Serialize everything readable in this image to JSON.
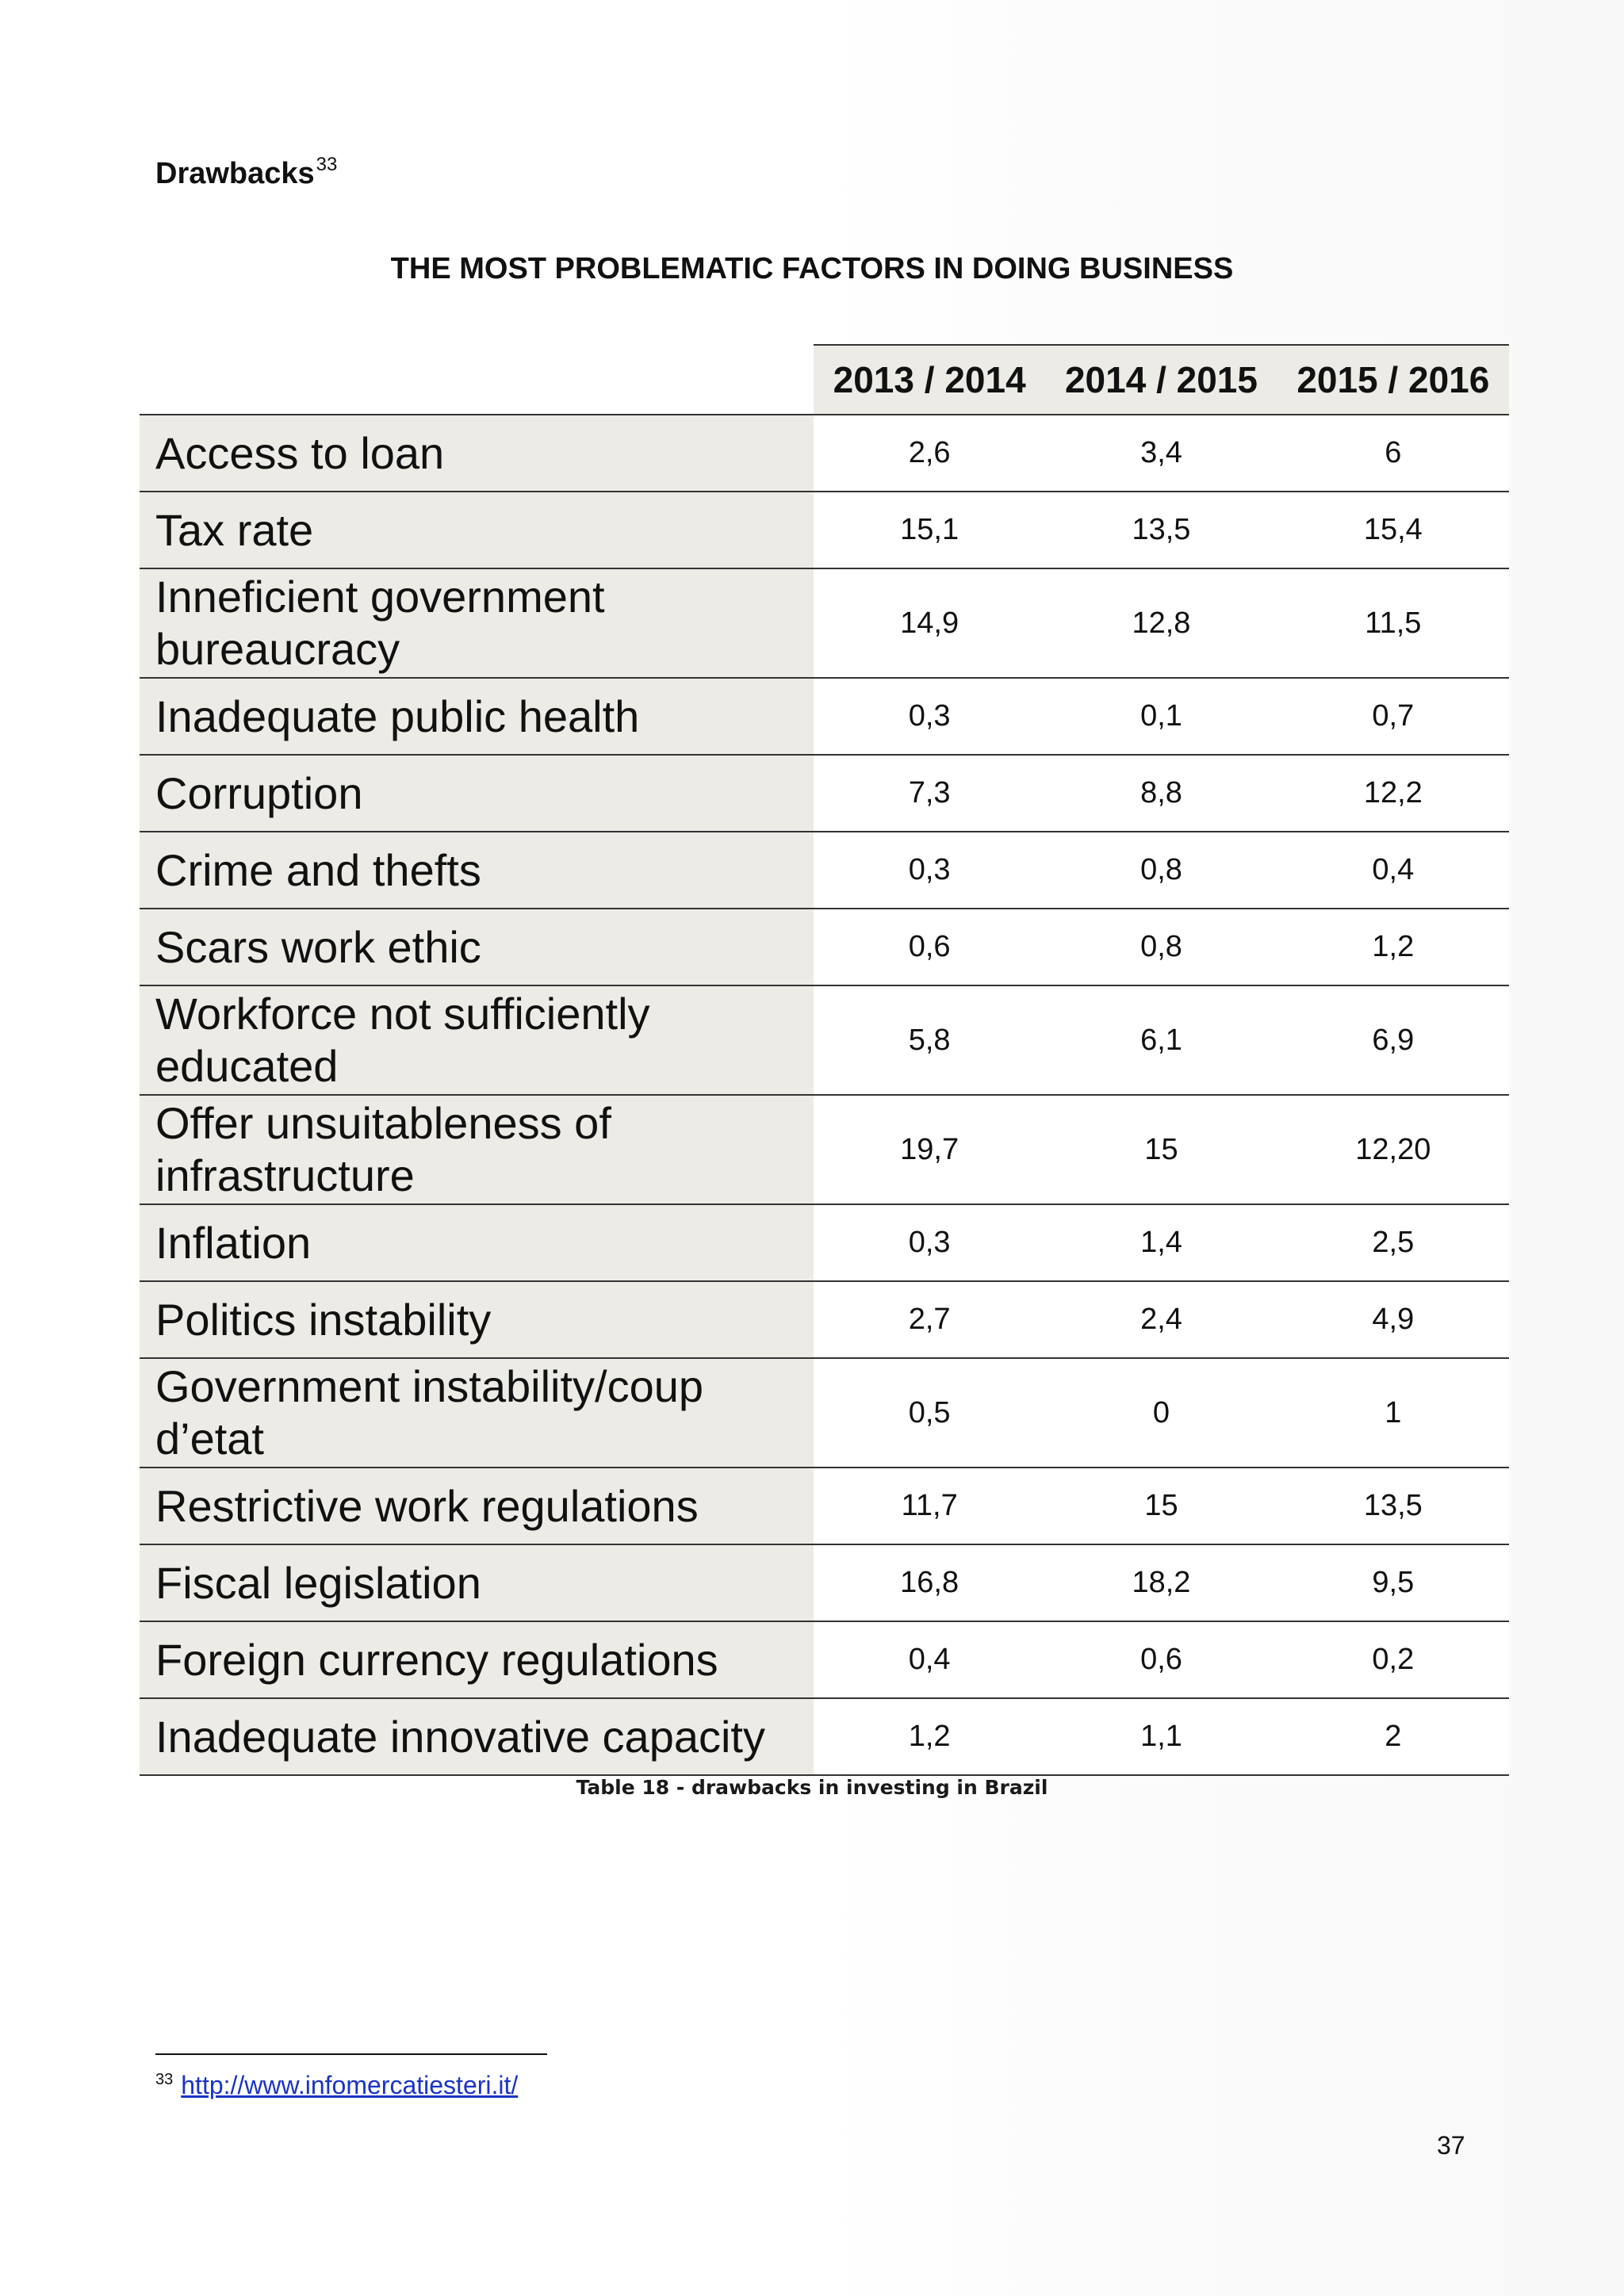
{
  "heading": {
    "text": "Drawbacks",
    "footnote_ref": "33"
  },
  "table": {
    "title": "THE MOST PROBLEMATIC FACTORS IN DOING BUSINESS",
    "columns": [
      "2013 / 2014",
      "2014 / 2015",
      "2015 / 2016"
    ],
    "rows": [
      {
        "label": "Access to loan",
        "values": [
          "2,6",
          "3,4",
          "6"
        ]
      },
      {
        "label": "Tax rate",
        "values": [
          "15,1",
          "13,5",
          "15,4"
        ]
      },
      {
        "label": "Inneficient government bureaucracy",
        "values": [
          "14,9",
          "12,8",
          "11,5"
        ]
      },
      {
        "label": "Inadequate public health",
        "values": [
          "0,3",
          "0,1",
          "0,7"
        ]
      },
      {
        "label": "Corruption",
        "values": [
          "7,3",
          "8,8",
          "12,2"
        ]
      },
      {
        "label": "Crime and thefts",
        "values": [
          "0,3",
          "0,8",
          "0,4"
        ]
      },
      {
        "label": "Scars work ethic",
        "values": [
          "0,6",
          "0,8",
          "1,2"
        ]
      },
      {
        "label": "Workforce not sufficiently educated",
        "values": [
          "5,8",
          "6,1",
          "6,9"
        ]
      },
      {
        "label": "Offer unsuitableness of infrastructure",
        "values": [
          "19,7",
          "15",
          "12,20"
        ]
      },
      {
        "label": "Inflation",
        "values": [
          "0,3",
          "1,4",
          "2,5"
        ]
      },
      {
        "label": "Politics instability",
        "values": [
          "2,7",
          "2,4",
          "4,9"
        ]
      },
      {
        "label": "Government instability/coup d’etat",
        "values": [
          "0,5",
          "0",
          "1"
        ]
      },
      {
        "label": "Restrictive work regulations",
        "values": [
          "11,7",
          "15",
          "13,5"
        ]
      },
      {
        "label": "Fiscal legislation",
        "values": [
          "16,8",
          "18,2",
          "9,5"
        ]
      },
      {
        "label": "Foreign currency regulations",
        "values": [
          "0,4",
          "0,6",
          "0,2"
        ]
      },
      {
        "label": "Inadequate innovative capacity",
        "values": [
          "1,2",
          "1,1",
          "2"
        ]
      }
    ],
    "caption": "Table 18 - drawbacks in investing in Brazil"
  },
  "footnote": {
    "number": "33",
    "link_text": "http://www.infomercatiesteri.it/"
  },
  "page_number": "37"
}
